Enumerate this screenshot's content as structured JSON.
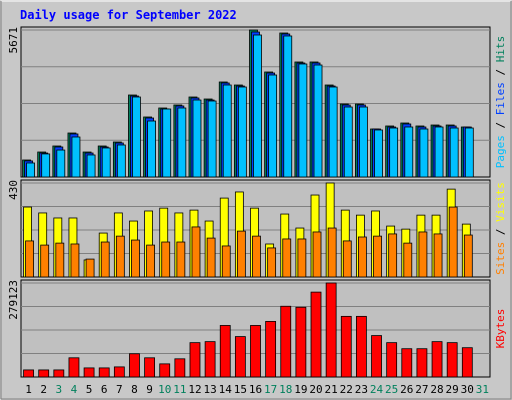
{
  "title": "Daily usage for September 2022",
  "legend_separator": " / ",
  "chart_data": [
    {
      "type": "bar",
      "ylim": [
        0,
        5671
      ],
      "yticks": [
        5671
      ],
      "grid_divisions": 4,
      "series": [
        {
          "name": "Hits",
          "color": "#00805c",
          "values": [
            656,
            964,
            1196,
            1697,
            964,
            1196,
            1350,
            3163,
            2315,
            2662,
            2778,
            3086,
            3009,
            3665,
            3549,
            5671,
            4051,
            5555,
            4437,
            4437,
            3549,
            2816,
            2816,
            1852,
            1968,
            2083,
            1968,
            2006,
            2006,
            1929,
            null
          ]
        },
        {
          "name": "Files",
          "color": "#0040ff",
          "values": [
            620,
            925,
            1158,
            1660,
            925,
            1158,
            1312,
            3125,
            2276,
            2623,
            2740,
            3048,
            2970,
            3626,
            3510,
            5594,
            4012,
            5517,
            4398,
            4398,
            3510,
            2778,
            2778,
            1852,
            1929,
            2045,
            1929,
            1968,
            1968,
            1929,
            null
          ]
        },
        {
          "name": "Pages",
          "color": "#00c0ff",
          "values": [
            540,
            890,
            1040,
            1543,
            850,
            1120,
            1235,
            3086,
            2160,
            2623,
            2662,
            2970,
            2932,
            3549,
            3472,
            5478,
            3935,
            5440,
            4360,
            4320,
            3472,
            2700,
            2700,
            1814,
            1890,
            1929,
            1852,
            1929,
            1890,
            1890,
            null
          ]
        }
      ]
    },
    {
      "type": "bar",
      "ylim": [
        0,
        430
      ],
      "yticks": [
        430
      ],
      "grid_divisions": 4,
      "series": [
        {
          "name": "Visits",
          "color": "#ffff00",
          "values": [
            320,
            293,
            270,
            270,
            78,
            201,
            293,
            256,
            302,
            315,
            293,
            306,
            256,
            361,
            389,
            315,
            151,
            288,
            224,
            375,
            430,
            306,
            283,
            302,
            233,
            219,
            283,
            283,
            402,
            242,
            null
          ]
        },
        {
          "name": "Sites",
          "color": "#ff8000",
          "values": [
            165,
            146,
            155,
            151,
            82,
            160,
            187,
            169,
            146,
            160,
            160,
            229,
            178,
            142,
            210,
            187,
            133,
            174,
            174,
            206,
            224,
            165,
            183,
            187,
            197,
            155,
            206,
            197,
            320,
            192,
            null
          ]
        }
      ]
    },
    {
      "type": "bar",
      "ylim": [
        0,
        279123
      ],
      "yticks": [
        279123
      ],
      "grid_divisions": 4,
      "categories": [
        "1",
        "2",
        "3",
        "4",
        "5",
        "6",
        "7",
        "8",
        "9",
        "10",
        "11",
        "12",
        "13",
        "14",
        "15",
        "16",
        "17",
        "18",
        "19",
        "20",
        "21",
        "22",
        "23",
        "24",
        "25",
        "26",
        "27",
        "28",
        "29",
        "30",
        "31"
      ],
      "category_colors": [
        "#000",
        "#000",
        "#00805c",
        "#00805c",
        "#000",
        "#000",
        "#000",
        "#000",
        "#000",
        "#00805c",
        "#00805c",
        "#000",
        "#000",
        "#000",
        "#000",
        "#000",
        "#00805c",
        "#00805c",
        "#000",
        "#000",
        "#000",
        "#000",
        "#000",
        "#00805c",
        "#00805c",
        "#000",
        "#000",
        "#000",
        "#000",
        "#000",
        "#00805c"
      ],
      "series": [
        {
          "name": "KBytes",
          "color": "#ff0000",
          "values": [
            21009,
            21009,
            21009,
            57019,
            27009,
            27009,
            30010,
            69023,
            57019,
            39013,
            54018,
            102034,
            105035,
            153051,
            120040,
            153051,
            165055,
            210070,
            207069,
            252084,
            279123,
            180060,
            180060,
            123041,
            102034,
            84028,
            84028,
            105035,
            102034,
            87029,
            null
          ]
        }
      ]
    }
  ]
}
